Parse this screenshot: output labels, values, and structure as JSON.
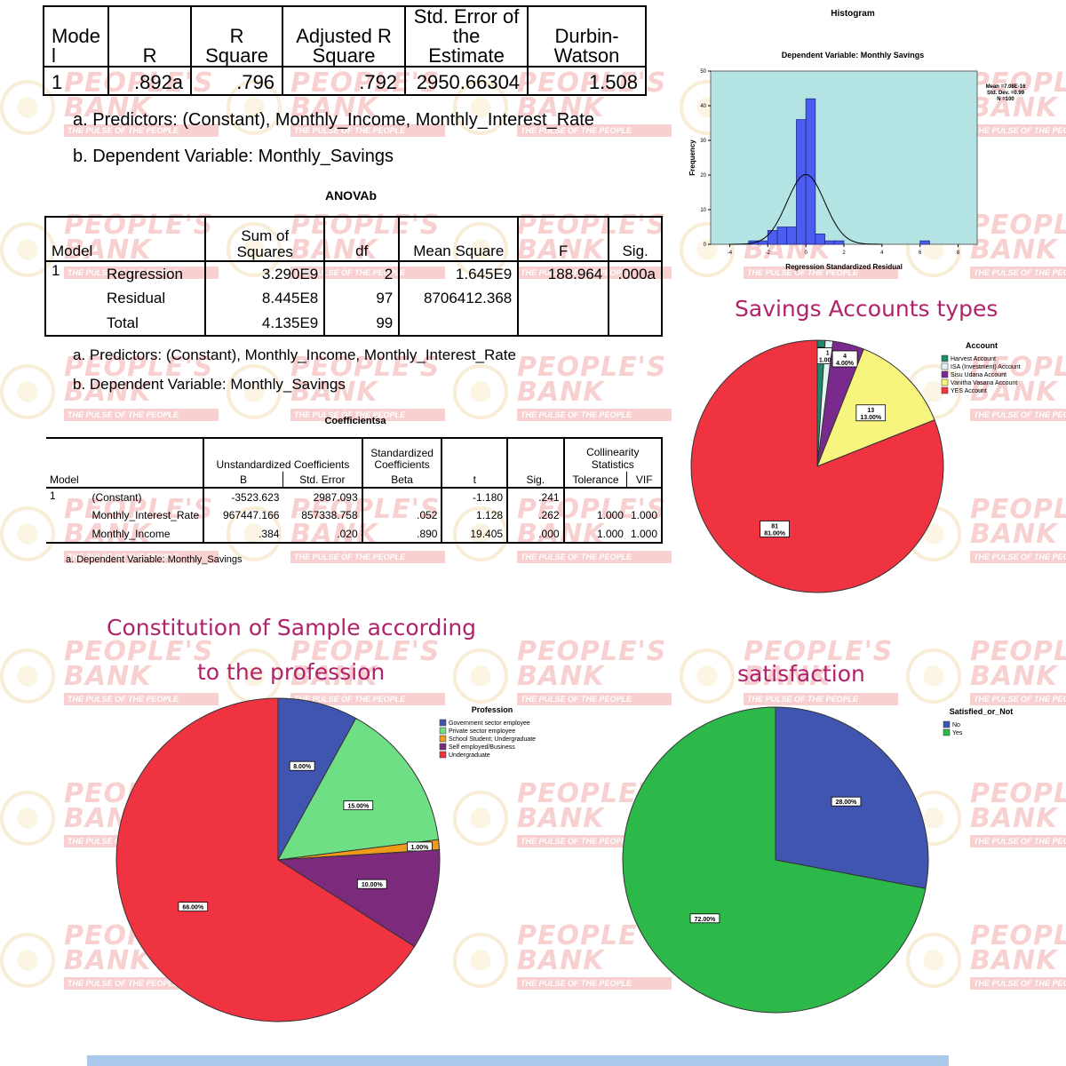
{
  "watermark": {
    "name_line1": "PEOPLE'S",
    "name_line2": "BANK",
    "tagline": "THE PULSE OF THE PEOPLE"
  },
  "model_summary": {
    "headers": [
      "Mode l",
      "R",
      "R Square",
      "Adjusted R Square",
      "Std. Error of the Estimate",
      "Durbin-Watson"
    ],
    "row": [
      "1",
      ".892a",
      ".796",
      ".792",
      "2950.66304",
      "1.508"
    ],
    "note_a": "a. Predictors: (Constant), Monthly_Income, Monthly_Interest_Rate",
    "note_b": "b. Dependent Variable: Monthly_Savings"
  },
  "anova": {
    "title": "ANOVAb",
    "headers": [
      "Model",
      "Sum of Squares",
      "df",
      "Mean Square",
      "F",
      "Sig."
    ],
    "model": "1",
    "rows": [
      [
        "Regression",
        "3.290E9",
        "2",
        "1.645E9",
        "188.964",
        ".000a"
      ],
      [
        "Residual",
        "8.445E8",
        "97",
        "8706412.368",
        "",
        ""
      ],
      [
        "Total",
        "4.135E9",
        "99",
        "",
        "",
        ""
      ]
    ],
    "note_a": "a. Predictors: (Constant), Monthly_Income, Monthly_Interest_Rate",
    "note_b": "b. Dependent Variable: Monthly_Savings"
  },
  "coefficients": {
    "title": "Coefficientsa",
    "group_headers": [
      "Unstandardized Coefficients",
      "Standardized Coefficients",
      "Collinearity Statistics"
    ],
    "headers": [
      "Model",
      "B",
      "Std. Error",
      "Beta",
      "t",
      "Sig.",
      "Tolerance",
      "VIF"
    ],
    "model": "1",
    "rows": [
      [
        "(Constant)",
        "-3523.623",
        "2987.093",
        "",
        "-1.180",
        ".241",
        "",
        ""
      ],
      [
        "Monthly_Interest_Rate",
        "967447.166",
        "857338.758",
        ".052",
        "1.128",
        ".262",
        "1.000",
        "1.000"
      ],
      [
        "Monthly_Income",
        ".384",
        ".020",
        ".890",
        "19.405",
        ".000",
        "1.000",
        "1.000"
      ]
    ],
    "note": "a. Dependent Variable: Monthly_Savings"
  },
  "section_titles": {
    "savings": "Savings Accounts types",
    "profession_1": "Constitution of Sample according",
    "profession_2": "to the profession",
    "satisfaction": "satisfaction"
  },
  "colors": {
    "title": "#b0226a",
    "histogram_bg": "#b3e3e3",
    "bar": "#4b5cf0"
  },
  "chart_data": [
    {
      "type": "bar",
      "title": "Histogram",
      "subtitle": "Dependent Variable: Monthly Savings",
      "xlabel": "Regression Standardized Residual",
      "ylabel": "Frequency",
      "xlim": [
        -5,
        9
      ],
      "ylim": [
        0,
        50
      ],
      "xticks": [
        "-4",
        "-2",
        "0",
        "2",
        "4",
        "6",
        "8"
      ],
      "yticks": [
        "0",
        "10",
        "20",
        "30",
        "40",
        "50"
      ],
      "bins": [
        {
          "from": -3.0,
          "to": -2.5,
          "count": 1
        },
        {
          "from": -2.5,
          "to": -2.0,
          "count": 1
        },
        {
          "from": -2.0,
          "to": -1.5,
          "count": 4
        },
        {
          "from": -1.5,
          "to": -1.0,
          "count": 5
        },
        {
          "from": -1.0,
          "to": -0.5,
          "count": 5
        },
        {
          "from": -0.5,
          "to": 0.0,
          "count": 36
        },
        {
          "from": 0.0,
          "to": 0.5,
          "count": 42
        },
        {
          "from": 0.5,
          "to": 1.0,
          "count": 3
        },
        {
          "from": 1.0,
          "to": 1.5,
          "count": 1
        },
        {
          "from": 1.5,
          "to": 2.0,
          "count": 1
        },
        {
          "from": 6.0,
          "to": 6.5,
          "count": 1
        }
      ],
      "normal_curve": {
        "mean": 0,
        "sd": 0.99,
        "n": 100,
        "bin_width": 0.5
      },
      "stats": [
        "Mean =7.08E-16",
        "Std. Dev. =0.99",
        "N =100"
      ]
    },
    {
      "type": "pie",
      "legend_title": "Account",
      "legend": "top-right",
      "slices": [
        {
          "name": "Harvest Account",
          "value": 1,
          "label": "1\n1.00%",
          "color": "#1f8a6a"
        },
        {
          "name": "ISA (Investment) Account",
          "value": 1,
          "label": "1\n1.00%",
          "color": "#e3f6f6"
        },
        {
          "name": "Sisu Udana Account",
          "value": 4,
          "label": "4\n4.00%",
          "color": "#7a2a8c"
        },
        {
          "name": "Vanitha Vasana Account",
          "value": 13,
          "label": "13\n13.00%",
          "color": "#f7f57d"
        },
        {
          "name": "YES Account",
          "value": 81,
          "label": "81\n81.00%",
          "color": "#ef3340"
        }
      ]
    },
    {
      "type": "pie",
      "legend_title": "Profession",
      "legend": "top-right",
      "slices": [
        {
          "name": "Government sector employee",
          "value": 8,
          "label": "8.00%",
          "color": "#3f55b0"
        },
        {
          "name": "Private sector employee",
          "value": 15,
          "label": "15.00%",
          "color": "#6fdf85"
        },
        {
          "name": "School Student; Undergraduate",
          "value": 1,
          "label": "1.00%",
          "color": "#f09a1a"
        },
        {
          "name": "Self employed/Business",
          "value": 10,
          "label": "10.00%",
          "color": "#7b2a7c"
        },
        {
          "name": "Undergraduate",
          "value": 66,
          "label": "66.00%",
          "color": "#ef3340"
        }
      ]
    },
    {
      "type": "pie",
      "legend_title": "Satisfied_or_Not",
      "legend": "top-right",
      "slices": [
        {
          "name": "No",
          "value": 28,
          "label": "28.00%",
          "color": "#3f55b0"
        },
        {
          "name": "Yes",
          "value": 72,
          "label": "72.00%",
          "color": "#2db84a"
        }
      ]
    }
  ]
}
